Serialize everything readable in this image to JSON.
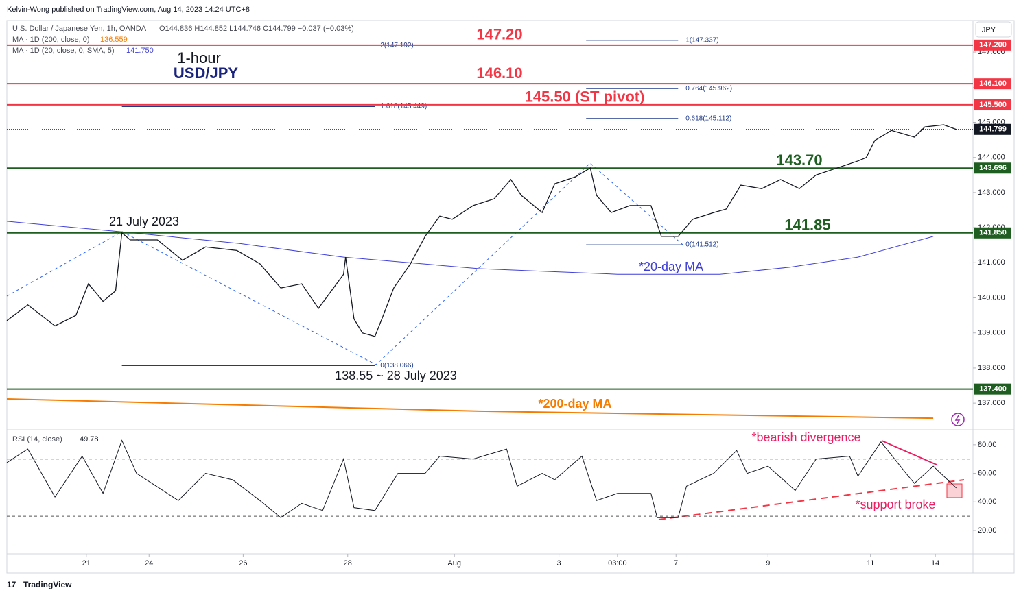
{
  "header": {
    "publisher": "Kelvin-Wong published on TradingView.com, Aug 14, 2023 14:24 UTC+8",
    "symbol": "U.S. Dollar / Japanese Yen, 1h, OANDA",
    "ohlc": "O144.836 H144.852 L144.746 C144.799 −0.037 (−0.03%)",
    "ma200": "MA · 1D (200, close, 0)",
    "ma200_last": "136.559",
    "ma20": "MA · 1D (20, close, 0, SMA, 5)",
    "ma20_last": "141.750",
    "currency": "JPY",
    "footer": "TradingView"
  },
  "chart_data": [
    {
      "type": "line",
      "color": "#131722",
      "x": [
        0,
        10,
        23,
        33,
        39,
        46,
        52,
        55,
        59,
        72,
        84,
        95,
        110,
        121,
        131,
        141,
        149,
        161,
        162,
        166,
        170,
        176,
        180,
        185,
        193,
        200,
        207,
        213,
        223,
        233,
        241,
        246,
        256,
        262,
        272,
        279,
        282,
        289,
        298,
        308,
        313,
        321,
        328,
        338,
        344,
        351,
        361,
        370,
        379,
        387,
        397,
        407,
        411,
        415,
        423,
        434,
        439,
        448,
        454
      ],
      "values": [
        139.35,
        139.8,
        139.2,
        139.5,
        140.4,
        139.9,
        140.2,
        141.85,
        141.65,
        141.65,
        141.07,
        141.45,
        141.35,
        140.97,
        140.28,
        140.4,
        139.7,
        140.67,
        141.16,
        139.4,
        139.0,
        138.9,
        139.5,
        140.28,
        140.97,
        141.75,
        142.33,
        142.24,
        142.63,
        142.82,
        143.37,
        142.92,
        142.43,
        143.25,
        143.45,
        143.7,
        142.92,
        142.43,
        142.63,
        142.63,
        141.75,
        141.75,
        142.24,
        142.43,
        142.53,
        143.21,
        143.11,
        143.37,
        143.11,
        143.5,
        143.7,
        143.9,
        144.0,
        144.48,
        144.77,
        144.58,
        144.87,
        144.93,
        144.799
      ],
      "xlim": [
        0,
        462
      ],
      "xticks": [
        {
          "value": 38,
          "label": "21"
        },
        {
          "value": 68,
          "label": "24"
        },
        {
          "value": 113,
          "label": "26"
        },
        {
          "value": 163,
          "label": "28"
        },
        {
          "value": 214,
          "label": "Aug"
        },
        {
          "value": 264,
          "label": "3"
        },
        {
          "value": 292,
          "label": "03:00"
        },
        {
          "value": 320,
          "label": "7"
        },
        {
          "value": 364,
          "label": "9"
        },
        {
          "value": 413,
          "label": "11"
        },
        {
          "value": 444,
          "label": "14"
        }
      ],
      "ylim": [
        136.28,
        147.9
      ],
      "yticks": [
        {
          "value": 147,
          "label": "147.000"
        },
        {
          "value": 146,
          "label": "146.000"
        },
        {
          "value": 145,
          "label": "145.000"
        },
        {
          "value": 144,
          "label": "144.000"
        },
        {
          "value": 143,
          "label": "143.000"
        },
        {
          "value": 142,
          "label": "142.000"
        },
        {
          "value": 141,
          "label": "141.000"
        },
        {
          "value": 140,
          "label": "140.000"
        },
        {
          "value": 139,
          "label": "139.000"
        },
        {
          "value": 138,
          "label": "138.000"
        },
        {
          "value": 137,
          "label": "137.000"
        }
      ],
      "moving_averages": [
        {
          "label": "*20-day MA",
          "color": "#3f3fd8",
          "x": [
            0,
            55,
            111,
            161,
            226,
            292,
            341,
            374,
            407,
            443
          ],
          "values": [
            142.18,
            141.88,
            141.55,
            141.16,
            140.83,
            140.67,
            140.67,
            140.87,
            141.16,
            141.75
          ]
        },
        {
          "label": "*200-day MA",
          "color": "#f57c00",
          "x": [
            0,
            226,
            443
          ],
          "values": [
            137.12,
            136.77,
            136.57
          ]
        }
      ],
      "current": {
        "value": 144.799,
        "label": "144.799"
      },
      "levels": [
        {
          "value": 147.2,
          "label": "147.20",
          "axis_label": "147.200",
          "color": "#f23645"
        },
        {
          "value": 146.1,
          "label": "146.10",
          "axis_label": "146.100",
          "color": "#f23645"
        },
        {
          "value": 145.5,
          "label": "145.50 (ST pivot)",
          "axis_label": "145.500",
          "color": "#f23645"
        },
        {
          "value": 143.696,
          "label": "143.70",
          "axis_label": "143.696",
          "color": "#1e5e20"
        },
        {
          "value": 141.85,
          "label": "141.85",
          "axis_label": "141.850",
          "color": "#1e5e20"
        },
        {
          "value": 137.4,
          "label": "",
          "axis_label": "137.400",
          "color": "#1e5e20"
        }
      ],
      "fib": [
        {
          "value": 147.192,
          "label": "2(147.192)",
          "x": [
            55,
            176
          ],
          "line": false
        },
        {
          "value": 147.337,
          "label": "1(147.337)",
          "x": [
            277,
            321
          ],
          "line": true
        },
        {
          "value": 145.962,
          "label": "0.764(145.962)",
          "x": [
            277,
            321
          ],
          "line": true
        },
        {
          "value": 145.449,
          "label": "1.618(145.449)",
          "x": [
            55,
            176
          ],
          "line": true
        },
        {
          "value": 145.112,
          "label": "0.618(145.112)",
          "x": [
            277,
            321
          ],
          "line": true
        },
        {
          "value": 141.512,
          "label": "0(141.512)",
          "x": [
            277,
            323
          ],
          "line": true
        },
        {
          "value": 138.066,
          "label": "0(138.066)",
          "x": [
            55,
            176
          ],
          "line": true
        }
      ],
      "annotations": [
        "1-hour",
        "USD/JPY",
        "21 July 2023",
        "138.55 ~ 28 July 2023"
      ]
    },
    {
      "type": "line",
      "title": "RSI (14, close)",
      "last": "49.78",
      "color": "#131722",
      "x": [
        0,
        10,
        23,
        36,
        46,
        55,
        62,
        82,
        95,
        108,
        121,
        131,
        141,
        151,
        161,
        166,
        176,
        187,
        200,
        207,
        223,
        239,
        244,
        256,
        262,
        275,
        282,
        292,
        308,
        311,
        321,
        325,
        338,
        349,
        354,
        364,
        377,
        387,
        403,
        407,
        418,
        430,
        434,
        443,
        454
      ],
      "values": [
        67.5,
        77,
        43.5,
        72,
        46,
        83,
        60,
        41,
        60,
        55.5,
        41,
        29,
        39,
        34,
        70,
        36,
        34,
        60,
        60,
        72,
        70,
        77,
        51,
        60,
        55.5,
        72,
        41,
        46,
        46,
        29,
        29,
        51,
        60,
        76,
        60,
        65,
        48,
        70,
        72,
        58,
        82,
        60,
        53,
        65,
        49.78
      ],
      "xlim": [
        0,
        462
      ],
      "ylim": [
        3.7,
        90
      ],
      "yticks": [
        {
          "value": 80,
          "label": "80.00"
        },
        {
          "value": 60,
          "label": "60.00"
        },
        {
          "value": 40,
          "label": "40.00"
        },
        {
          "value": 20,
          "label": "20.00"
        }
      ],
      "bands": [
        30,
        70
      ],
      "annotations": [
        "*bearish divergence",
        "*support broke"
      ]
    }
  ]
}
